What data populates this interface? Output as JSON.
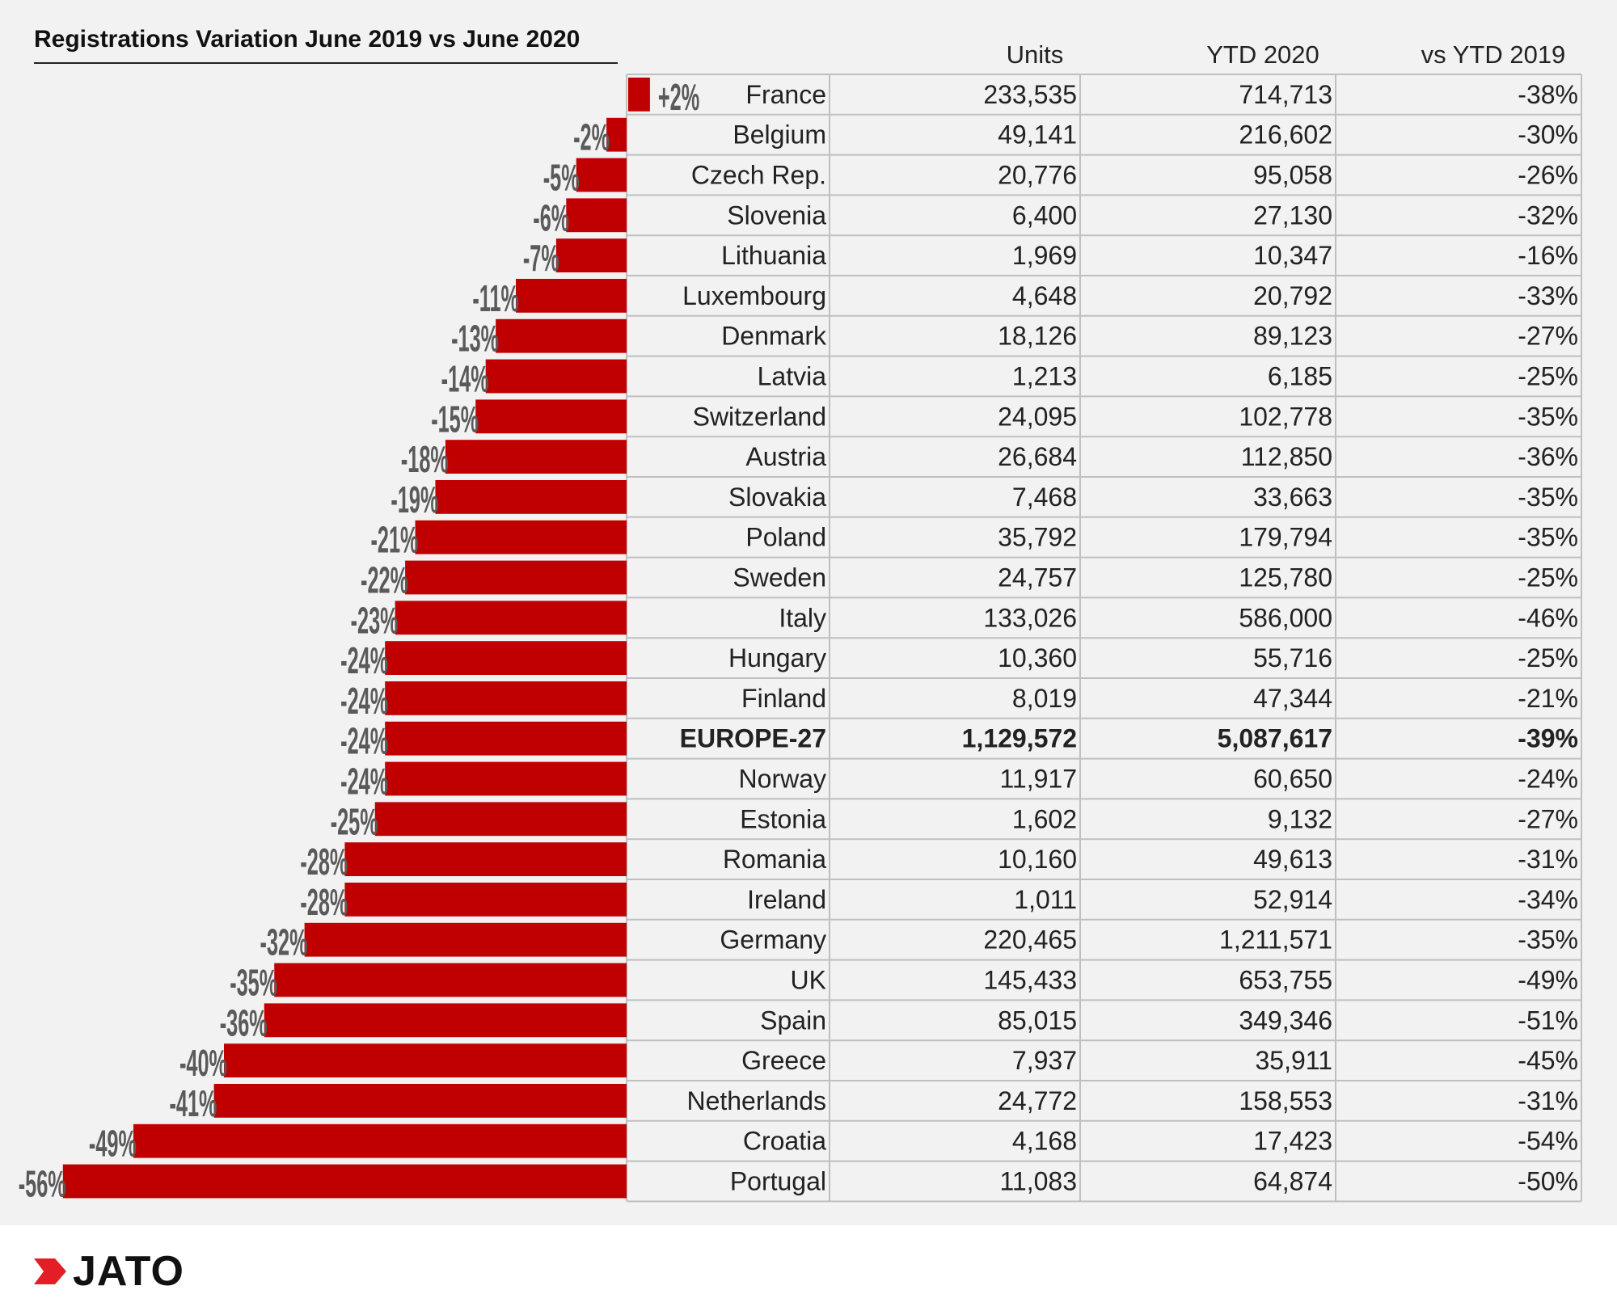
{
  "chart_data": {
    "type": "bar",
    "title": "Registrations Variation June 2019 vs June 2020",
    "columns": [
      "Units",
      "YTD 2020",
      "vs YTD 2019"
    ],
    "categories": [
      "France",
      "Belgium",
      "Czech Rep.",
      "Slovenia",
      "Lithuania",
      "Luxembourg",
      "Denmark",
      "Latvia",
      "Switzerland",
      "Austria",
      "Slovakia",
      "Poland",
      "Sweden",
      "Italy",
      "Hungary",
      "Finland",
      "EUROPE-27",
      "Norway",
      "Estonia",
      "Romania",
      "Ireland",
      "Germany",
      "UK",
      "Spain",
      "Greece",
      "Netherlands",
      "Croatia",
      "Portugal"
    ],
    "values": [
      2,
      -2,
      -5,
      -6,
      -7,
      -11,
      -13,
      -14,
      -15,
      -18,
      -19,
      -21,
      -22,
      -23,
      -24,
      -24,
      -24,
      -24,
      -25,
      -28,
      -28,
      -32,
      -35,
      -36,
      -40,
      -41,
      -49,
      -56
    ],
    "value_labels": [
      "+2%",
      "-2%",
      "-5%",
      "-6%",
      "-7%",
      "-11%",
      "-13%",
      "-14%",
      "-15%",
      "-18%",
      "-19%",
      "-21%",
      "-22%",
      "-23%",
      "-24%",
      "-24%",
      "-24%",
      "-24%",
      "-25%",
      "-28%",
      "-28%",
      "-32%",
      "-35%",
      "-36%",
      "-40%",
      "-41%",
      "-49%",
      "-56%"
    ],
    "units": [
      "233,535",
      "49,141",
      "20,776",
      "6,400",
      "1,969",
      "4,648",
      "18,126",
      "1,213",
      "24,095",
      "26,684",
      "7,468",
      "35,792",
      "24,757",
      "133,026",
      "10,360",
      "8,019",
      "1,129,572",
      "11,917",
      "1,602",
      "10,160",
      "1,011",
      "220,465",
      "145,433",
      "85,015",
      "7,937",
      "24,772",
      "4,168",
      "11,083"
    ],
    "ytd_2020": [
      "714,713",
      "216,602",
      "95,058",
      "27,130",
      "10,347",
      "20,792",
      "89,123",
      "6,185",
      "102,778",
      "112,850",
      "33,663",
      "179,794",
      "125,780",
      "586,000",
      "55,716",
      "47,344",
      "5,087,617",
      "60,650",
      "9,132",
      "49,613",
      "52,914",
      "1,211,571",
      "653,755",
      "349,346",
      "35,911",
      "158,553",
      "17,423",
      "64,874"
    ],
    "vs_ytd_2019": [
      "-38%",
      "-30%",
      "-26%",
      "-32%",
      "-16%",
      "-33%",
      "-27%",
      "-25%",
      "-35%",
      "-36%",
      "-35%",
      "-35%",
      "-25%",
      "-46%",
      "-25%",
      "-21%",
      "-39%",
      "-24%",
      "-27%",
      "-31%",
      "-34%",
      "-35%",
      "-49%",
      "-51%",
      "-45%",
      "-31%",
      "-54%",
      "-50%"
    ],
    "highlight_category": "EUROPE-27",
    "bar_color": "#c00000",
    "grid_color": "#bfbfbf",
    "background": "#f2f2f2"
  },
  "logo": {
    "text": "JATO",
    "color": "#e41e26"
  }
}
